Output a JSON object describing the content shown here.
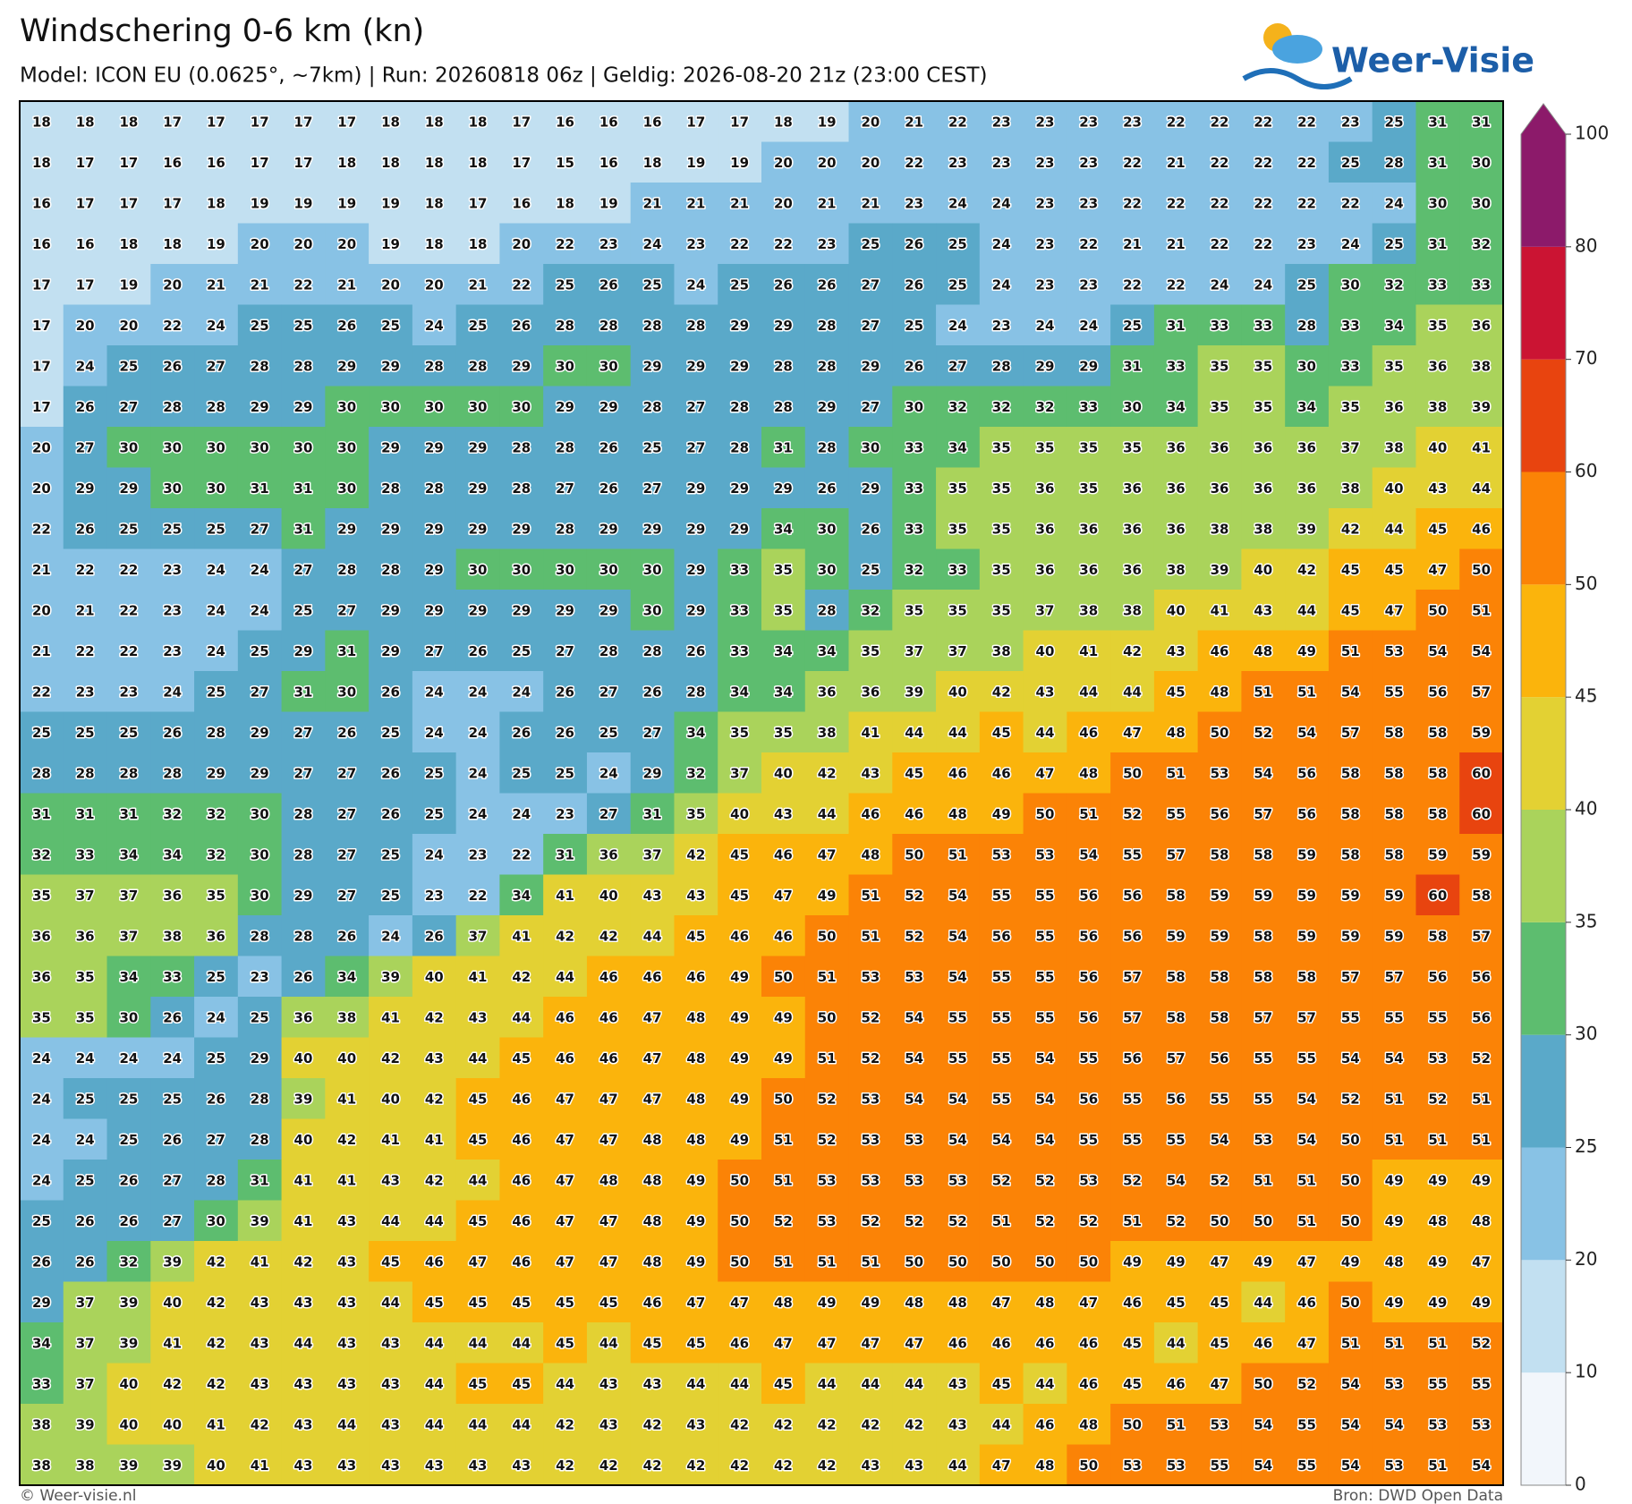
{
  "title": "Windschering 0-6 km (kn)",
  "subtitle": "Model: ICON EU (0.0625°, ~7km)  |  Run: 20260818 06z  |  Geldig: 2026-08-20 21z (23:00 CEST)",
  "logo": "Weer-Visie",
  "footer_left": "© Weer-visie.nl",
  "footer_right": "Bron: DWD Open Data",
  "colorbar": {
    "ticks": [
      0,
      10,
      20,
      25,
      30,
      35,
      40,
      45,
      50,
      60,
      70,
      80,
      100
    ],
    "colors": [
      "#f2f6fb",
      "#c2e0f1",
      "#88c2e5",
      "#5aa9c9",
      "#5dbd6f",
      "#aad35b",
      "#e3d133",
      "#fbb40c",
      "#fb8306",
      "#e8440f",
      "#cb1433",
      "#8c1a6a"
    ]
  },
  "grid": [
    [
      18,
      18,
      18,
      17,
      17,
      17,
      17,
      17,
      18,
      18,
      18,
      17,
      16,
      16,
      16,
      17,
      17,
      18,
      19,
      20,
      21,
      22,
      23,
      23,
      23,
      23,
      22,
      22,
      22,
      22,
      23,
      25,
      31,
      31
    ],
    [
      18,
      17,
      17,
      16,
      16,
      17,
      17,
      18,
      18,
      18,
      18,
      17,
      15,
      16,
      18,
      19,
      19,
      20,
      20,
      20,
      22,
      23,
      23,
      23,
      23,
      22,
      21,
      22,
      22,
      22,
      25,
      28,
      31,
      30
    ],
    [
      16,
      17,
      17,
      17,
      18,
      19,
      19,
      19,
      19,
      18,
      17,
      16,
      18,
      19,
      21,
      21,
      21,
      20,
      21,
      21,
      23,
      24,
      24,
      23,
      23,
      22,
      22,
      22,
      22,
      22,
      22,
      24,
      30,
      30
    ],
    [
      16,
      16,
      18,
      18,
      19,
      20,
      20,
      20,
      19,
      18,
      18,
      20,
      22,
      23,
      24,
      23,
      22,
      22,
      23,
      25,
      26,
      25,
      24,
      23,
      22,
      21,
      21,
      22,
      22,
      23,
      24,
      25,
      31,
      32
    ],
    [
      17,
      17,
      19,
      20,
      21,
      21,
      22,
      21,
      20,
      20,
      21,
      22,
      25,
      26,
      25,
      24,
      25,
      26,
      26,
      27,
      26,
      25,
      24,
      23,
      23,
      22,
      22,
      24,
      24,
      25,
      30,
      32,
      33,
      33
    ],
    [
      17,
      20,
      20,
      22,
      24,
      25,
      25,
      26,
      25,
      24,
      25,
      26,
      28,
      28,
      28,
      28,
      29,
      29,
      28,
      27,
      25,
      24,
      23,
      24,
      24,
      25,
      31,
      33,
      33,
      28,
      33,
      34,
      35,
      36
    ],
    [
      17,
      24,
      25,
      26,
      27,
      28,
      28,
      29,
      29,
      28,
      28,
      29,
      30,
      30,
      29,
      29,
      29,
      28,
      28,
      29,
      26,
      27,
      28,
      29,
      29,
      31,
      33,
      35,
      35,
      30,
      33,
      35,
      36,
      38
    ],
    [
      17,
      26,
      27,
      28,
      28,
      29,
      29,
      30,
      30,
      30,
      30,
      30,
      29,
      29,
      28,
      27,
      28,
      28,
      29,
      27,
      30,
      32,
      32,
      32,
      33,
      30,
      34,
      35,
      35,
      34,
      35,
      36,
      38,
      39
    ],
    [
      20,
      27,
      30,
      30,
      30,
      30,
      30,
      30,
      29,
      29,
      29,
      28,
      28,
      26,
      25,
      27,
      28,
      31,
      28,
      30,
      33,
      34,
      35,
      35,
      35,
      35,
      36,
      36,
      36,
      36,
      37,
      38,
      40,
      41
    ],
    [
      20,
      29,
      29,
      30,
      30,
      31,
      31,
      30,
      28,
      28,
      29,
      28,
      27,
      26,
      27,
      29,
      29,
      29,
      26,
      29,
      33,
      35,
      35,
      36,
      35,
      36,
      36,
      36,
      36,
      36,
      38,
      40,
      43,
      44
    ],
    [
      22,
      26,
      25,
      25,
      25,
      27,
      31,
      29,
      29,
      29,
      29,
      29,
      28,
      29,
      29,
      29,
      29,
      34,
      30,
      26,
      33,
      35,
      35,
      36,
      36,
      36,
      36,
      38,
      38,
      39,
      42,
      44,
      45,
      46
    ],
    [
      21,
      22,
      22,
      23,
      24,
      24,
      27,
      28,
      28,
      29,
      30,
      30,
      30,
      30,
      30,
      29,
      33,
      35,
      30,
      25,
      32,
      33,
      35,
      36,
      36,
      36,
      38,
      39,
      40,
      42,
      45,
      45,
      47,
      50
    ],
    [
      20,
      21,
      22,
      23,
      24,
      24,
      25,
      27,
      29,
      29,
      29,
      29,
      29,
      29,
      30,
      29,
      33,
      35,
      28,
      32,
      35,
      35,
      35,
      37,
      38,
      38,
      40,
      41,
      43,
      44,
      45,
      47,
      50,
      51
    ],
    [
      21,
      22,
      22,
      23,
      24,
      25,
      29,
      31,
      29,
      27,
      26,
      25,
      27,
      28,
      28,
      26,
      33,
      34,
      34,
      35,
      37,
      37,
      38,
      40,
      41,
      42,
      43,
      46,
      48,
      49,
      51,
      53,
      54,
      54
    ],
    [
      22,
      23,
      23,
      24,
      25,
      27,
      31,
      30,
      26,
      24,
      24,
      24,
      26,
      27,
      26,
      28,
      34,
      34,
      36,
      36,
      39,
      40,
      42,
      43,
      44,
      44,
      45,
      48,
      51,
      51,
      54,
      55,
      56,
      57
    ],
    [
      25,
      25,
      25,
      26,
      28,
      29,
      27,
      26,
      25,
      24,
      24,
      26,
      26,
      25,
      27,
      34,
      35,
      35,
      38,
      41,
      44,
      44,
      45,
      44,
      46,
      47,
      48,
      50,
      52,
      54,
      57,
      58,
      58,
      59
    ],
    [
      28,
      28,
      28,
      28,
      29,
      29,
      27,
      27,
      26,
      25,
      24,
      25,
      25,
      24,
      29,
      32,
      37,
      40,
      42,
      43,
      45,
      46,
      46,
      47,
      48,
      50,
      51,
      53,
      54,
      56,
      58,
      58,
      58,
      60
    ],
    [
      31,
      31,
      31,
      32,
      32,
      30,
      28,
      27,
      26,
      25,
      24,
      24,
      23,
      27,
      31,
      35,
      40,
      43,
      44,
      46,
      46,
      48,
      49,
      50,
      51,
      52,
      55,
      56,
      57,
      56,
      58,
      58,
      58,
      60
    ],
    [
      32,
      33,
      34,
      34,
      32,
      30,
      28,
      27,
      25,
      24,
      23,
      22,
      31,
      36,
      37,
      42,
      45,
      46,
      47,
      48,
      50,
      51,
      53,
      53,
      54,
      55,
      57,
      58,
      58,
      59,
      58,
      58,
      59,
      59
    ],
    [
      35,
      37,
      37,
      36,
      35,
      30,
      29,
      27,
      25,
      23,
      22,
      34,
      41,
      40,
      43,
      43,
      45,
      47,
      49,
      51,
      52,
      54,
      55,
      55,
      56,
      56,
      58,
      59,
      59,
      59,
      59,
      59,
      60,
      58
    ],
    [
      36,
      36,
      37,
      38,
      36,
      28,
      28,
      26,
      24,
      26,
      37,
      41,
      42,
      42,
      44,
      45,
      46,
      46,
      50,
      51,
      52,
      54,
      56,
      55,
      56,
      56,
      59,
      59,
      58,
      59,
      59,
      59,
      58,
      57
    ],
    [
      36,
      35,
      34,
      33,
      25,
      23,
      26,
      34,
      39,
      40,
      41,
      42,
      44,
      46,
      46,
      46,
      49,
      50,
      51,
      53,
      53,
      54,
      55,
      55,
      56,
      57,
      58,
      58,
      58,
      58,
      57,
      57,
      56,
      56
    ],
    [
      35,
      35,
      30,
      26,
      24,
      25,
      36,
      38,
      41,
      42,
      43,
      44,
      46,
      46,
      47,
      48,
      49,
      49,
      50,
      52,
      54,
      55,
      55,
      55,
      56,
      57,
      58,
      58,
      57,
      57,
      55,
      55,
      55,
      56
    ],
    [
      24,
      24,
      24,
      24,
      25,
      29,
      40,
      40,
      42,
      43,
      44,
      45,
      46,
      46,
      47,
      48,
      49,
      49,
      51,
      52,
      54,
      55,
      55,
      54,
      55,
      56,
      57,
      56,
      55,
      55,
      54,
      54,
      53,
      52
    ],
    [
      24,
      25,
      25,
      25,
      26,
      28,
      39,
      41,
      40,
      42,
      45,
      46,
      47,
      47,
      47,
      48,
      49,
      50,
      52,
      53,
      54,
      54,
      55,
      54,
      56,
      55,
      56,
      55,
      55,
      54,
      52,
      51,
      52,
      51
    ],
    [
      24,
      24,
      25,
      26,
      27,
      28,
      40,
      42,
      41,
      41,
      45,
      46,
      47,
      47,
      48,
      48,
      49,
      51,
      52,
      53,
      53,
      54,
      54,
      54,
      55,
      55,
      55,
      54,
      53,
      54,
      50,
      51,
      51,
      51
    ],
    [
      24,
      25,
      26,
      27,
      28,
      31,
      41,
      41,
      43,
      42,
      44,
      46,
      47,
      48,
      48,
      49,
      50,
      51,
      53,
      53,
      53,
      53,
      52,
      52,
      53,
      52,
      54,
      52,
      51,
      51,
      50,
      49,
      49,
      49
    ],
    [
      25,
      26,
      26,
      27,
      30,
      39,
      41,
      43,
      44,
      44,
      45,
      46,
      47,
      47,
      48,
      49,
      50,
      52,
      53,
      52,
      52,
      52,
      51,
      52,
      52,
      51,
      52,
      50,
      50,
      51,
      50,
      49,
      48,
      48
    ],
    [
      26,
      26,
      32,
      39,
      42,
      41,
      42,
      43,
      45,
      46,
      47,
      46,
      47,
      47,
      48,
      49,
      50,
      51,
      51,
      51,
      50,
      50,
      50,
      50,
      50,
      49,
      49,
      47,
      49,
      47,
      49,
      48,
      49,
      47
    ],
    [
      29,
      37,
      39,
      40,
      42,
      43,
      43,
      43,
      44,
      45,
      45,
      45,
      45,
      45,
      46,
      47,
      47,
      48,
      49,
      49,
      48,
      48,
      47,
      48,
      47,
      46,
      45,
      45,
      44,
      46,
      50,
      49,
      49,
      49
    ],
    [
      34,
      37,
      39,
      41,
      42,
      43,
      44,
      43,
      43,
      44,
      44,
      44,
      45,
      44,
      45,
      45,
      46,
      47,
      47,
      47,
      47,
      46,
      46,
      46,
      46,
      45,
      44,
      45,
      46,
      47,
      51,
      51,
      51,
      52
    ],
    [
      33,
      37,
      40,
      42,
      42,
      43,
      43,
      43,
      43,
      44,
      45,
      45,
      44,
      43,
      43,
      44,
      44,
      45,
      44,
      44,
      44,
      43,
      45,
      44,
      46,
      45,
      46,
      47,
      50,
      52,
      54,
      53,
      55,
      55
    ],
    [
      38,
      39,
      40,
      40,
      41,
      42,
      43,
      44,
      43,
      44,
      44,
      44,
      42,
      43,
      42,
      43,
      42,
      42,
      42,
      42,
      42,
      43,
      44,
      46,
      48,
      50,
      51,
      53,
      54,
      55,
      54,
      54,
      53,
      53
    ],
    [
      38,
      38,
      39,
      39,
      40,
      41,
      43,
      43,
      43,
      43,
      43,
      43,
      42,
      42,
      42,
      42,
      42,
      42,
      42,
      43,
      43,
      44,
      47,
      48,
      50,
      53,
      53,
      55,
      54,
      55,
      54,
      53,
      51,
      54
    ]
  ]
}
